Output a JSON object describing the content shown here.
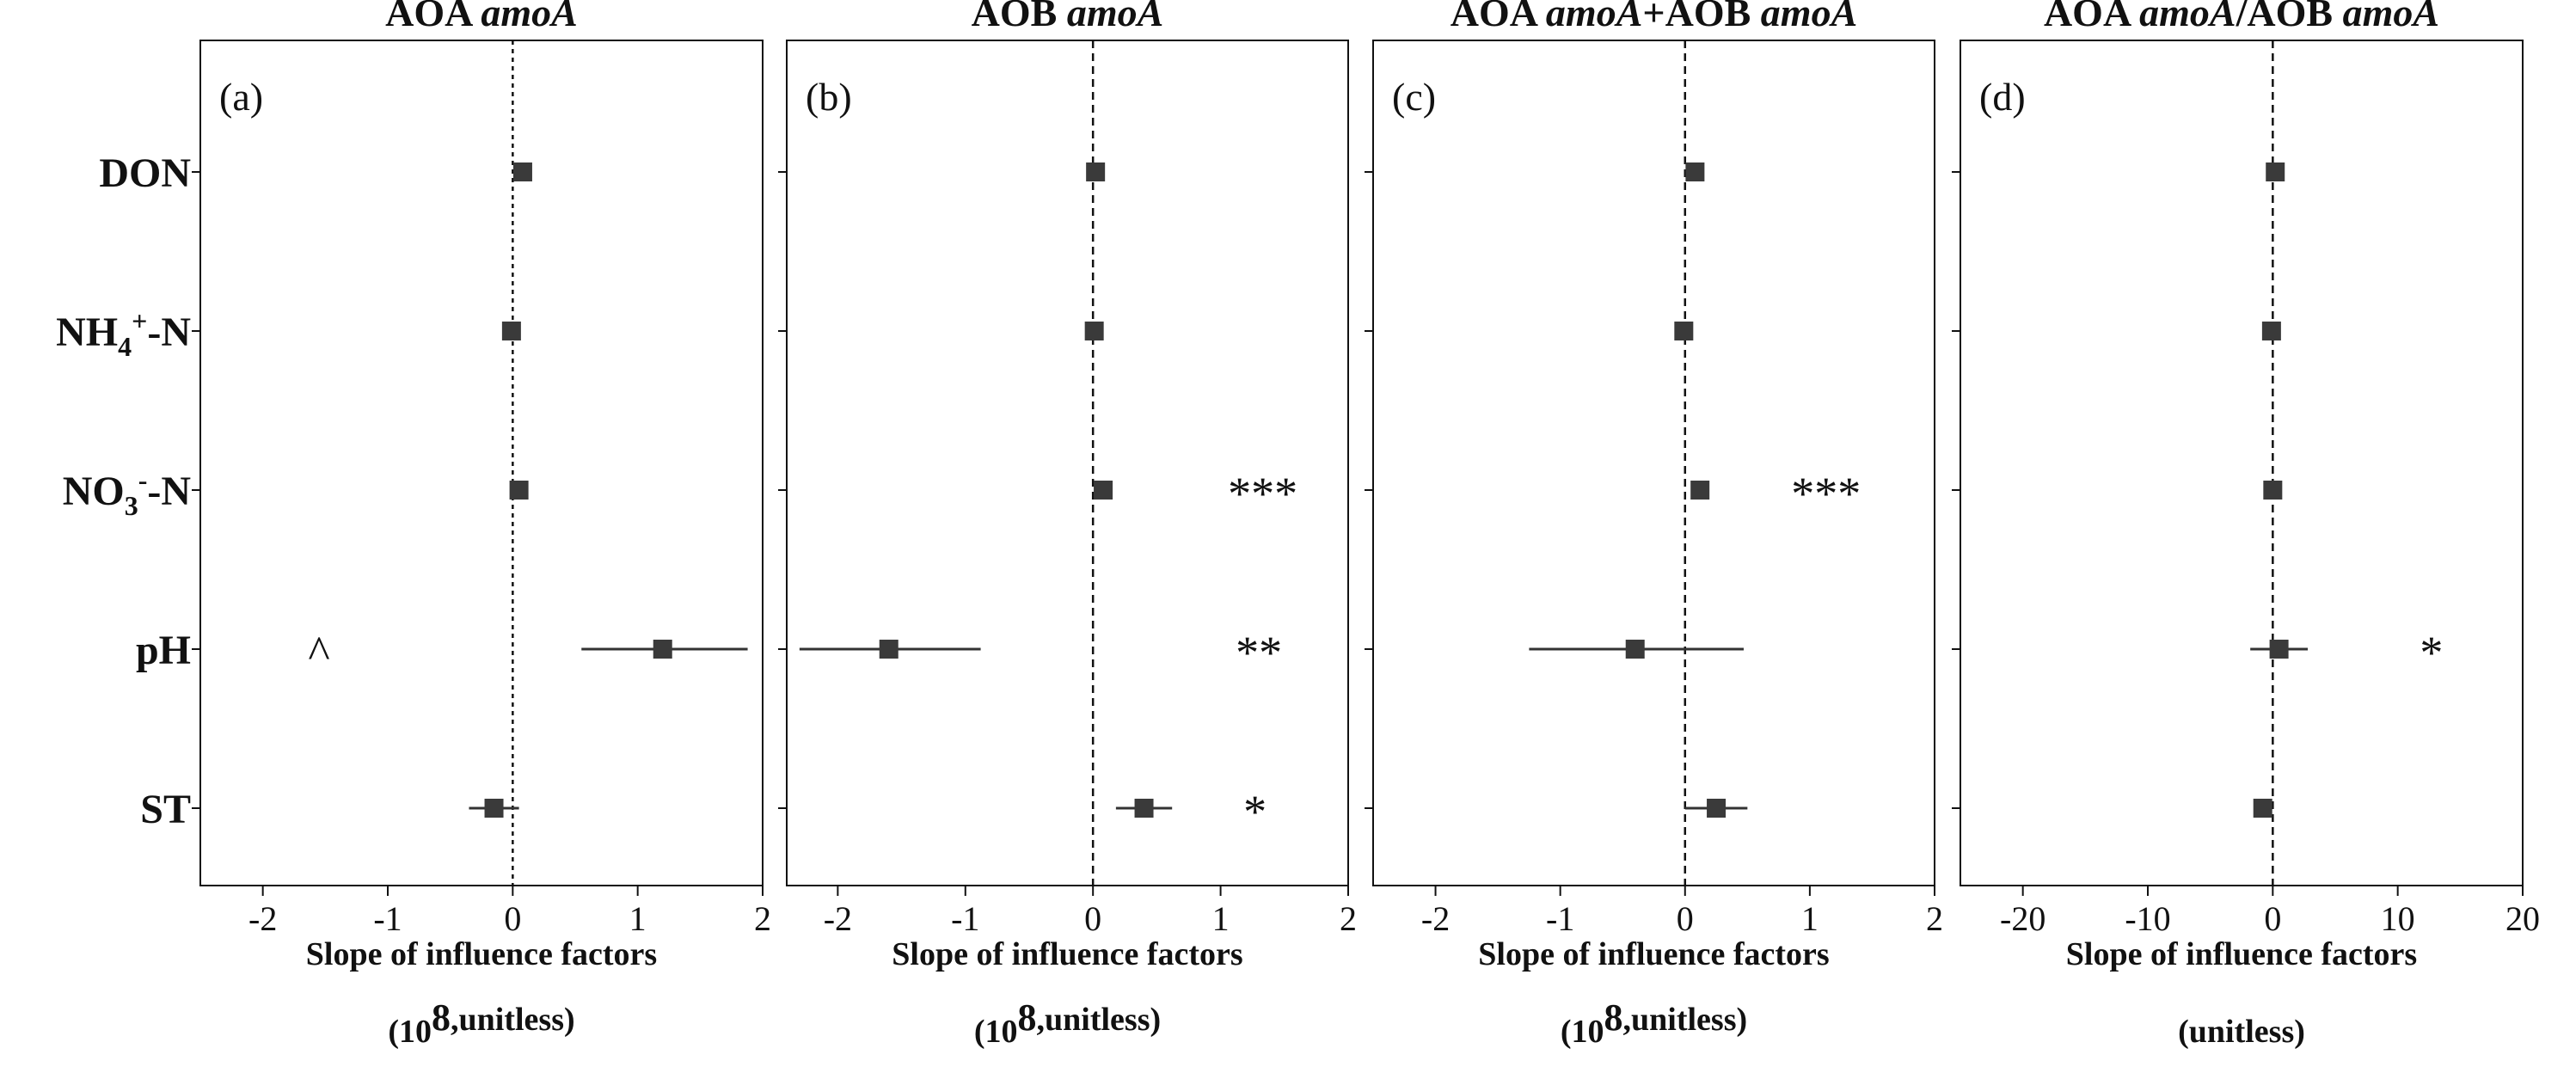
{
  "chart_data": {
    "type": "forest",
    "factors": [
      "DON",
      "NH4+-N",
      "NO3--N",
      "pH",
      "ST"
    ],
    "ytick_labels": [
      {
        "base": "DON",
        "sub": "",
        "sup": "",
        "tail": ""
      },
      {
        "base": "NH",
        "sub": "4",
        "sup": "+",
        "tail": "-N"
      },
      {
        "base": "NO",
        "sub": "3",
        "sup": "-",
        "tail": "-N"
      },
      {
        "base": "pH",
        "sub": "",
        "sup": "",
        "tail": ""
      },
      {
        "base": "ST",
        "sub": "",
        "sup": "",
        "tail": ""
      }
    ],
    "panels": [
      {
        "label": "(a)",
        "title_parts": [
          [
            "AOA ",
            "normal"
          ],
          [
            "amoA",
            "italic"
          ]
        ],
        "xlim": [
          -2.5,
          2
        ],
        "xticks": [
          -2,
          -1,
          0,
          1,
          2
        ],
        "xlabel": "Slope of influence factors",
        "unit_parts": [
          [
            "(10",
            "base"
          ],
          [
            "8",
            "sup"
          ],
          [
            ",unitless)",
            "base"
          ]
        ],
        "estimates": [
          0.08,
          -0.01,
          0.05,
          1.2,
          -0.15
        ],
        "ci_low": [
          null,
          null,
          null,
          0.55,
          -0.35
        ],
        "ci_high": [
          null,
          null,
          null,
          1.88,
          0.05
        ],
        "significance": [
          "",
          "",
          "",
          "^",
          ""
        ],
        "marker_x": [
          null,
          null,
          null,
          -1.55,
          null
        ],
        "ref_line_style": "dotted"
      },
      {
        "label": "(b)",
        "title_parts": [
          [
            "AOB ",
            "normal"
          ],
          [
            "amoA",
            "italic"
          ]
        ],
        "xlim": [
          -2.4,
          2
        ],
        "xticks": [
          -2,
          -1,
          0,
          1,
          2
        ],
        "xlabel": "Slope of influence factors",
        "unit_parts": [
          [
            "(10",
            "base"
          ],
          [
            "8",
            "sup"
          ],
          [
            ",unitless)",
            "base"
          ]
        ],
        "estimates": [
          0.02,
          0.01,
          0.08,
          -1.6,
          0.4
        ],
        "ci_low": [
          null,
          null,
          null,
          -2.3,
          0.18
        ],
        "ci_high": [
          null,
          null,
          null,
          -0.88,
          0.62
        ],
        "significance": [
          "",
          "",
          "***",
          "**",
          "*"
        ],
        "marker_x": [
          null,
          null,
          1.33,
          1.3,
          1.27
        ],
        "ref_line_style": "dashed"
      },
      {
        "label": "(c)",
        "title_parts": [
          [
            "AOA ",
            "normal"
          ],
          [
            "amoA",
            "italic"
          ],
          [
            "+AOB ",
            "normal"
          ],
          [
            "amoA",
            "italic"
          ]
        ],
        "xlim": [
          -2.5,
          2
        ],
        "xticks": [
          -2,
          -1,
          0,
          1,
          2
        ],
        "xlabel": "Slope of influence factors",
        "unit_parts": [
          [
            "(10",
            "base"
          ],
          [
            "8",
            "sup"
          ],
          [
            ",unitless)",
            "base"
          ]
        ],
        "estimates": [
          0.08,
          -0.01,
          0.12,
          -0.4,
          0.25
        ],
        "ci_low": [
          null,
          null,
          null,
          -1.25,
          0.0
        ],
        "ci_high": [
          null,
          null,
          null,
          0.47,
          0.5
        ],
        "significance": [
          "",
          "",
          "***",
          "",
          ""
        ],
        "marker_x": [
          null,
          null,
          1.13,
          null,
          null
        ],
        "ref_line_style": "dashed"
      },
      {
        "label": "(d)",
        "title_parts": [
          [
            "AOA ",
            "normal"
          ],
          [
            "amoA",
            "italic"
          ],
          [
            "/AOB ",
            "normal"
          ],
          [
            "amoA",
            "italic"
          ]
        ],
        "xlim": [
          -25,
          20
        ],
        "xticks": [
          -20,
          -10,
          0,
          10,
          20
        ],
        "xlabel": "Slope of influence factors",
        "unit_parts": [
          [
            "(unitless)",
            "base"
          ]
        ],
        "estimates": [
          0.2,
          -0.1,
          0.0,
          0.5,
          -0.8
        ],
        "ci_low": [
          null,
          null,
          null,
          -1.8,
          null
        ],
        "ci_high": [
          null,
          null,
          null,
          2.8,
          null
        ],
        "significance": [
          "",
          "",
          "",
          "*",
          ""
        ],
        "marker_x": [
          null,
          null,
          null,
          12.7,
          null
        ],
        "ref_line_style": "dashed"
      }
    ]
  }
}
